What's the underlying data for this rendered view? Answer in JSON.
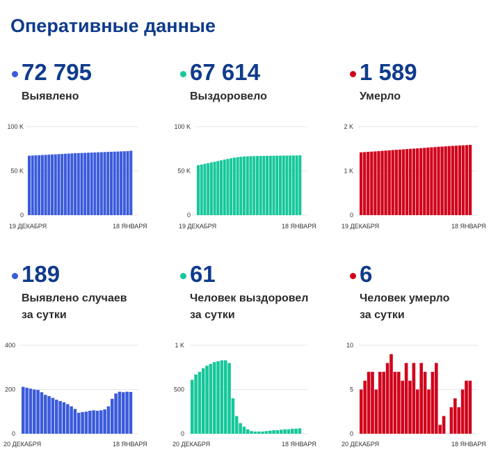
{
  "page": {
    "title": "Оперативные данные"
  },
  "colors": {
    "blue": "#3b5bdb",
    "green": "#16c79a",
    "red": "#d0021b",
    "title": "#0f3b8c"
  },
  "stats": [
    {
      "value": "72 795",
      "label1": "Выявлено",
      "label2": ""
    },
    {
      "value": "67 614",
      "label1": "Выздоровело",
      "label2": ""
    },
    {
      "value": "1 589",
      "label1": "Умерло",
      "label2": ""
    },
    {
      "value": "189",
      "label1": "Выявлено случаев",
      "label2": "за сутки"
    },
    {
      "value": "61",
      "label1": "Человек выздоровел",
      "label2": "за сутки"
    },
    {
      "value": "6",
      "label1": "Человек умерло",
      "label2": "за сутки"
    }
  ],
  "chart_data": [
    {
      "type": "bar",
      "color": "blue",
      "yticks": [
        {
          "v": 0,
          "t": "0"
        },
        {
          "v": 50000,
          "t": "50 K"
        },
        {
          "v": 100000,
          "t": "100 K"
        }
      ],
      "ylim": [
        0,
        100000
      ],
      "x_start": "19 ДЕКАБРЯ",
      "x_end": "18 ЯНВАРЯ",
      "values": [
        67200,
        67400,
        67600,
        67800,
        68000,
        68200,
        68400,
        68600,
        68800,
        69000,
        69200,
        69400,
        69600,
        69800,
        70000,
        70150,
        70300,
        70450,
        70600,
        70750,
        70900,
        71050,
        71200,
        71350,
        71500,
        71650,
        71800,
        71950,
        72100,
        72250,
        72400,
        72795
      ]
    },
    {
      "type": "bar",
      "color": "green",
      "yticks": [
        {
          "v": 0,
          "t": "0"
        },
        {
          "v": 50000,
          "t": "50 K"
        },
        {
          "v": 100000,
          "t": "100 K"
        }
      ],
      "ylim": [
        0,
        100000
      ],
      "x_start": "19 ДЕКАБРЯ",
      "x_end": "18 ЯНВАРЯ",
      "values": [
        56500,
        57200,
        58000,
        58800,
        59600,
        60400,
        61200,
        62000,
        62800,
        63600,
        64300,
        65000,
        65600,
        66000,
        66300,
        66500,
        66650,
        66750,
        66850,
        66950,
        67000,
        67050,
        67100,
        67150,
        67200,
        67250,
        67300,
        67350,
        67400,
        67450,
        67500,
        67614
      ]
    },
    {
      "type": "bar",
      "color": "red",
      "yticks": [
        {
          "v": 0,
          "t": "0"
        },
        {
          "v": 1000,
          "t": "1 K"
        },
        {
          "v": 2000,
          "t": "2 K"
        }
      ],
      "ylim": [
        0,
        2000
      ],
      "x_start": "19 ДЕКАБРЯ",
      "x_end": "18 ЯНВАРЯ",
      "values": [
        1420,
        1426,
        1432,
        1437,
        1442,
        1448,
        1454,
        1460,
        1466,
        1472,
        1478,
        1483,
        1488,
        1494,
        1500,
        1505,
        1510,
        1516,
        1522,
        1528,
        1534,
        1540,
        1546,
        1551,
        1556,
        1561,
        1566,
        1571,
        1576,
        1580,
        1584,
        1589
      ]
    },
    {
      "type": "bar",
      "color": "blue",
      "yticks": [
        {
          "v": 0,
          "t": "0"
        },
        {
          "v": 200,
          "t": "200"
        },
        {
          "v": 400,
          "t": "400"
        }
      ],
      "ylim": [
        0,
        400
      ],
      "x_start": "20 ДЕКАБРЯ",
      "x_end": "18 ЯНВАРЯ",
      "values": [
        212,
        208,
        204,
        200,
        198,
        188,
        176,
        170,
        162,
        154,
        148,
        142,
        134,
        124,
        112,
        95,
        98,
        100,
        104,
        106,
        104,
        106,
        110,
        124,
        158,
        182,
        190,
        188,
        190,
        189
      ]
    },
    {
      "type": "bar",
      "color": "green",
      "yticks": [
        {
          "v": 0,
          "t": "0"
        },
        {
          "v": 500,
          "t": "500"
        },
        {
          "v": 1000,
          "t": "1 K"
        }
      ],
      "ylim": [
        0,
        1000
      ],
      "x_start": "20 ДЕКАБРЯ",
      "x_end": "18 ЯНВАРЯ",
      "values": [
        610,
        670,
        700,
        740,
        770,
        790,
        810,
        820,
        830,
        830,
        800,
        400,
        200,
        120,
        80,
        50,
        30,
        25,
        25,
        25,
        30,
        35,
        40,
        40,
        45,
        50,
        50,
        55,
        58,
        61
      ]
    },
    {
      "type": "bar",
      "color": "red",
      "yticks": [
        {
          "v": 0,
          "t": "0"
        },
        {
          "v": 5,
          "t": "5"
        },
        {
          "v": 10,
          "t": "10"
        }
      ],
      "ylim": [
        0,
        10
      ],
      "x_start": "20 ДЕКАБРЯ",
      "x_end": "18 ЯНВАРЯ",
      "values": [
        5,
        6,
        7,
        7,
        5,
        7,
        7,
        8,
        9,
        7,
        7,
        6,
        8,
        6,
        8,
        5,
        8,
        7,
        5,
        7,
        8,
        1,
        2,
        0,
        3,
        4,
        3,
        5,
        6,
        6
      ]
    }
  ]
}
